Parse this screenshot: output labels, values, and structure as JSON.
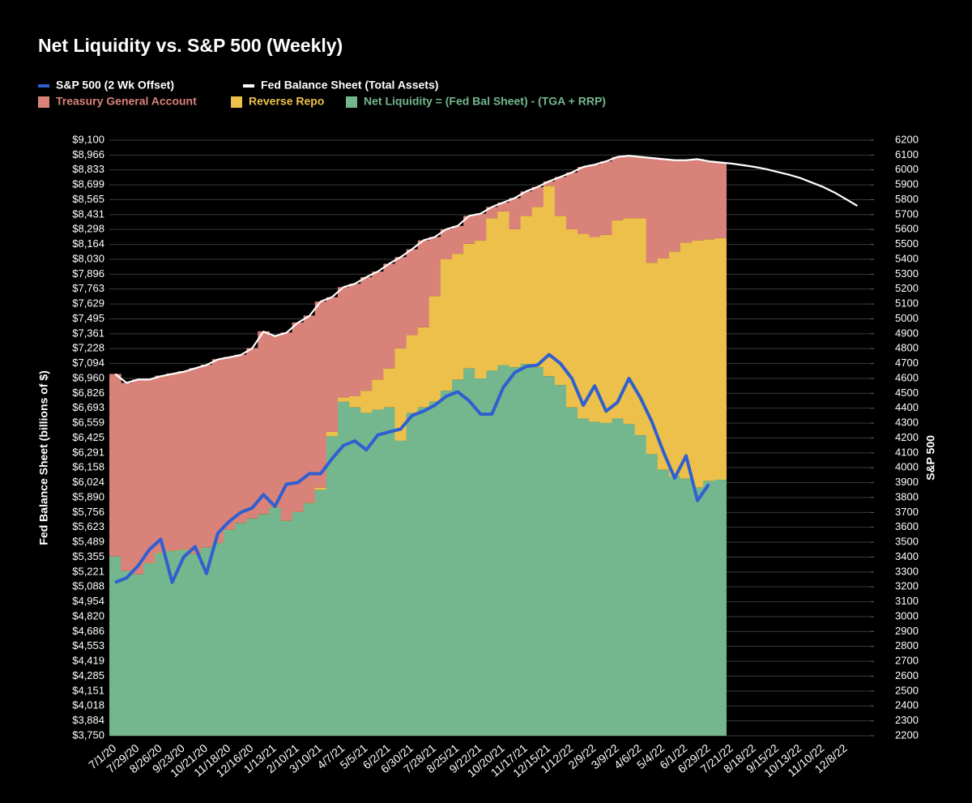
{
  "chart_data": {
    "type": "combo",
    "title": "Net Liquidity vs. S&P 500 (Weekly)",
    "ylabel": "Fed Balance Sheet (billions of $)",
    "y2label": "S&P 500",
    "stacked": true,
    "grid": true,
    "legend": "top-left",
    "categories": [
      "7/1/20",
      null,
      "7/29/20",
      null,
      "8/26/20",
      null,
      "9/23/20",
      null,
      "10/21/20",
      null,
      "11/18/20",
      null,
      "12/16/20",
      null,
      "1/13/21",
      null,
      "2/10/21",
      null,
      "3/10/21",
      null,
      "4/7/21",
      null,
      "5/5/21",
      null,
      "6/2/21",
      null,
      "6/30/21",
      null,
      "7/28/21",
      null,
      "8/25/21",
      null,
      "9/22/21",
      null,
      "10/20/21",
      null,
      "11/17/21",
      null,
      "12/15/21",
      null,
      "1/12/22",
      null,
      "2/9/22",
      null,
      "3/9/22",
      null,
      "4/6/22",
      null,
      "5/4/22",
      null,
      "6/1/22",
      null,
      "6/29/22",
      null,
      "7/21/22",
      null,
      "8/18/22",
      null,
      "9/15/22",
      null,
      "10/13/22",
      null,
      "11/10/22",
      null,
      "12/8/22",
      null
    ],
    "series": [
      {
        "name": "S&P 500 (2 Wk Offset)",
        "type": "line",
        "axis": "y2",
        "color": "#2f5fd0",
        "values": [
          3230,
          3260,
          3340,
          3450,
          3520,
          3230,
          3400,
          3470,
          3290,
          3560,
          3640,
          3700,
          3730,
          3820,
          3740,
          3890,
          3900,
          3960,
          3960,
          4060,
          4150,
          4180,
          4120,
          4220,
          4240,
          4260,
          4350,
          4380,
          4420,
          4480,
          4510,
          4450,
          4360,
          4360,
          4540,
          4640,
          4680,
          4690,
          4760,
          4700,
          4600,
          4420,
          4550,
          4380,
          4440,
          4600,
          4470,
          4310,
          4110,
          3930,
          4080,
          3780,
          3890,
          null,
          null,
          null,
          null,
          null,
          null,
          null,
          null,
          null,
          null,
          null,
          null,
          null
        ]
      },
      {
        "name": "Fed Balance Sheet (Total Assets)",
        "type": "line",
        "color": "#ffffff",
        "values": [
          7000,
          6920,
          6950,
          6950,
          6980,
          7000,
          7020,
          7050,
          7080,
          7130,
          7150,
          7170,
          7230,
          7380,
          7340,
          7370,
          7460,
          7520,
          7650,
          7690,
          7780,
          7810,
          7870,
          7920,
          7990,
          8050,
          8120,
          8200,
          8230,
          8300,
          8330,
          8420,
          8440,
          8500,
          8540,
          8580,
          8640,
          8680,
          8730,
          8770,
          8810,
          8860,
          8880,
          8910,
          8950,
          8960,
          8950,
          8940,
          8930,
          8920,
          8920,
          8930,
          8910,
          8900,
          8890,
          8875,
          8860,
          8840,
          8815,
          8790,
          8760,
          8720,
          8680,
          8630,
          8570,
          8510
        ]
      },
      {
        "name": "Treasury General Account",
        "type": "bar",
        "color": "#d9827a",
        "values": [
          1640,
          1690,
          1750,
          1650,
          1590,
          1590,
          1600,
          1670,
          1640,
          1650,
          1550,
          1510,
          1530,
          1640,
          1540,
          1690,
          1700,
          1680,
          1670,
          1210,
          990,
          1010,
          1020,
          970,
          940,
          820,
          770,
          780,
          530,
          270,
          250,
          250,
          240,
          100,
          80,
          280,
          220,
          180,
          40,
          350,
          510,
          600,
          650,
          660,
          570,
          560,
          550,
          940,
          890,
          820,
          740,
          730,
          700,
          680,
          null,
          null,
          null,
          null,
          null,
          null,
          null,
          null,
          null,
          null,
          null,
          null
        ]
      },
      {
        "name": "Reverse Repo",
        "type": "bar",
        "color": "#ecc04b",
        "values": [
          0,
          0,
          0,
          5,
          5,
          5,
          5,
          3,
          3,
          3,
          3,
          3,
          3,
          3,
          3,
          3,
          3,
          5,
          20,
          40,
          40,
          100,
          200,
          270,
          350,
          830,
          700,
          720,
          950,
          1180,
          1130,
          1120,
          1240,
          1370,
          1380,
          1240,
          1330,
          1440,
          1710,
          1520,
          1600,
          1660,
          1660,
          1690,
          1780,
          1850,
          1950,
          1720,
          1900,
          2020,
          2120,
          2220,
          2170,
          2170,
          null,
          null,
          null,
          null,
          null,
          null,
          null,
          null,
          null,
          null,
          null,
          null
        ]
      },
      {
        "name": "Net Liquidity = (Fed Bal Sheet) - (TGA + RRP)",
        "type": "bar",
        "color": "#74b78e",
        "values": [
          5360,
          5230,
          5200,
          5300,
          5390,
          5410,
          5420,
          5380,
          5440,
          5480,
          5600,
          5660,
          5700,
          5740,
          5800,
          5680,
          5760,
          5840,
          5960,
          6440,
          6750,
          6700,
          6650,
          6680,
          6700,
          6400,
          6650,
          6700,
          6750,
          6850,
          6950,
          7050,
          6960,
          7030,
          7080,
          7060,
          7090,
          7060,
          6980,
          6900,
          6700,
          6600,
          6570,
          6560,
          6600,
          6550,
          6450,
          6280,
          6140,
          6080,
          6060,
          5980,
          6040,
          6050,
          null,
          null,
          null,
          null,
          null,
          null,
          null,
          null,
          null,
          null,
          null,
          null
        ]
      }
    ],
    "ylim": [
      3750,
      9100
    ],
    "yticks": [
      {
        "value": 3750,
        "label": "$3,750"
      },
      {
        "value": 3884,
        "label": "$3,884"
      },
      {
        "value": 4018,
        "label": "$4,018"
      },
      {
        "value": 4151,
        "label": "$4,151"
      },
      {
        "value": 4285,
        "label": "$4,285"
      },
      {
        "value": 4419,
        "label": "$4,419"
      },
      {
        "value": 4553,
        "label": "$4,553"
      },
      {
        "value": 4686,
        "label": "$4,686"
      },
      {
        "value": 4820,
        "label": "$4,820"
      },
      {
        "value": 4954,
        "label": "$4,954"
      },
      {
        "value": 5088,
        "label": "$5,088"
      },
      {
        "value": 5221,
        "label": "$5,221"
      },
      {
        "value": 5355,
        "label": "$5,355"
      },
      {
        "value": 5489,
        "label": "$5,489"
      },
      {
        "value": 5623,
        "label": "$5,623"
      },
      {
        "value": 5756,
        "label": "$5,756"
      },
      {
        "value": 5890,
        "label": "$5,890"
      },
      {
        "value": 6024,
        "label": "$6,024"
      },
      {
        "value": 6158,
        "label": "$6,158"
      },
      {
        "value": 6291,
        "label": "$6,291"
      },
      {
        "value": 6425,
        "label": "$6,425"
      },
      {
        "value": 6559,
        "label": "$6,559"
      },
      {
        "value": 6693,
        "label": "$6,693"
      },
      {
        "value": 6826,
        "label": "$6,826"
      },
      {
        "value": 6960,
        "label": "$6,960"
      },
      {
        "value": 7094,
        "label": "$7,094"
      },
      {
        "value": 7228,
        "label": "$7,228"
      },
      {
        "value": 7361,
        "label": "$7,361"
      },
      {
        "value": 7495,
        "label": "$7,495"
      },
      {
        "value": 7629,
        "label": "$7,629"
      },
      {
        "value": 7763,
        "label": "$7,763"
      },
      {
        "value": 7896,
        "label": "$7,896"
      },
      {
        "value": 8030,
        "label": "$8,030"
      },
      {
        "value": 8164,
        "label": "$8,164"
      },
      {
        "value": 8298,
        "label": "$8,298"
      },
      {
        "value": 8431,
        "label": "$8,431"
      },
      {
        "value": 8565,
        "label": "$8,565"
      },
      {
        "value": 8699,
        "label": "$8,699"
      },
      {
        "value": 8833,
        "label": "$8,833"
      },
      {
        "value": 8966,
        "label": "$8,966"
      },
      {
        "value": 9100,
        "label": "$9,100"
      }
    ],
    "y2lim": [
      2200,
      6200
    ],
    "y2ticks": [
      2200,
      2300,
      2400,
      2500,
      2600,
      2700,
      2800,
      2900,
      3000,
      3100,
      3200,
      3300,
      3400,
      3500,
      3600,
      3700,
      3800,
      3900,
      4000,
      4100,
      4200,
      4300,
      4400,
      4500,
      4600,
      4700,
      4800,
      4900,
      5000,
      5100,
      5200,
      5300,
      5400,
      5500,
      5600,
      5700,
      5800,
      5900,
      6000,
      6100,
      6200
    ]
  }
}
